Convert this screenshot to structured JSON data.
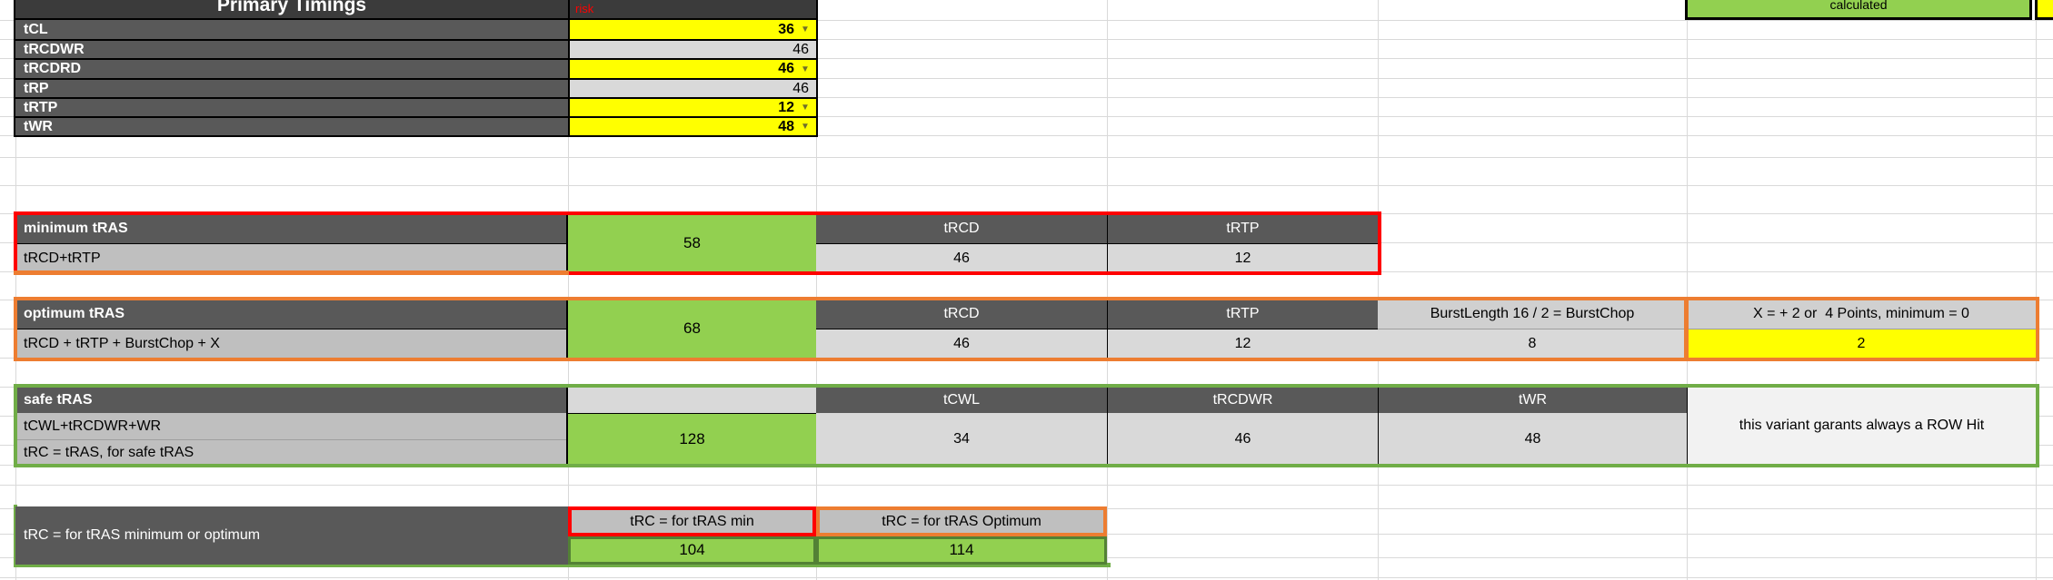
{
  "sheet": {
    "header": {
      "title": "Primary Timings",
      "risk": "risk",
      "calculated": "calculated"
    },
    "primary": {
      "rows": [
        {
          "label": "tCL",
          "value": "36",
          "editable": true
        },
        {
          "label": "tRCDWR",
          "value": "46",
          "editable": false
        },
        {
          "label": "tRCDRD",
          "value": "46",
          "editable": true
        },
        {
          "label": "tRP",
          "value": "46",
          "editable": false
        },
        {
          "label": "tRTP",
          "value": "12",
          "editable": true
        },
        {
          "label": "tWR",
          "value": "48",
          "editable": true
        }
      ]
    },
    "minimum": {
      "title": "minimum tRAS",
      "formula": "tRCD+tRTP",
      "result": "58",
      "col1_header": "tRCD",
      "col1_value": "46",
      "col2_header": "tRTP",
      "col2_value": "12"
    },
    "optimum": {
      "title": "optimum tRAS",
      "formula": "tRCD + tRTP + BurstChop + X",
      "result": "68",
      "col1_header": "tRCD",
      "col1_value": "46",
      "col2_header": "tRTP",
      "col2_value": "12",
      "burstchop_header": "BurstLength 16 / 2 = BurstChop",
      "burstchop_value": "8",
      "x_header": "X = + 2 or  4 Points, minimum = 0",
      "x_value": "2"
    },
    "safe": {
      "title": "safe tRAS",
      "formula": "tCWL+tRCDWR+WR",
      "formula2": "tRC = tRAS, for safe tRAS",
      "result": "128",
      "col1_header": "tCWL",
      "col1_value": "34",
      "col2_header": "tRCDWR",
      "col2_value": "46",
      "col3_header": "tWR",
      "col3_value": "48",
      "note": "this variant garants always a ROW Hit"
    },
    "trc": {
      "title": "tRC = for tRAS minimum or optimum",
      "min_header": "tRC = for tRAS min",
      "min_value": "104",
      "opt_header": "tRC = for tRAS Optimum",
      "opt_value": "114"
    },
    "colors": {
      "red": "#ff0000",
      "orange": "#ed7d31",
      "green_fill": "#92d050",
      "green_border": "#70ad47",
      "dark_green_border": "#538135",
      "yellow": "#ffff00",
      "dark_gray": "#595959",
      "mid_gray": "#bfbfbf",
      "light_gray": "#d9d9d9",
      "gridline": "#d9d9d9"
    }
  }
}
